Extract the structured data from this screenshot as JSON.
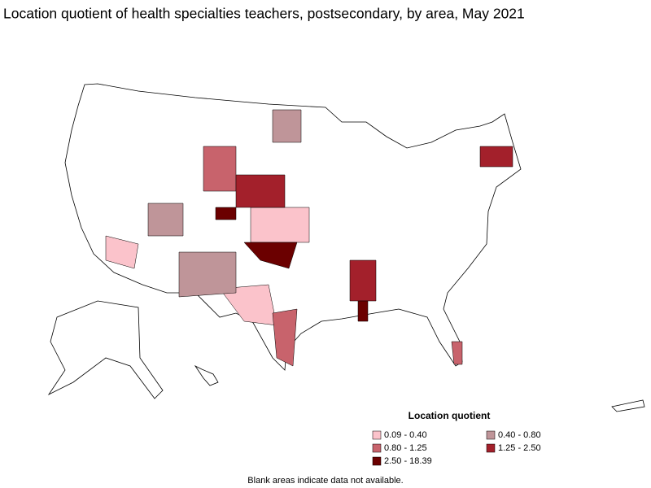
{
  "title": "Location quotient of health specialties teachers, postsecondary, by area, May 2021",
  "legend": {
    "title": "Location quotient",
    "items": [
      {
        "label": "0.09 - 0.40",
        "color": "#fbc3cb"
      },
      {
        "label": "0.40 - 0.80",
        "color": "#bf9599"
      },
      {
        "label": "0.80 - 1.25",
        "color": "#c8636c"
      },
      {
        "label": "1.25 - 2.50",
        "color": "#a3202b"
      },
      {
        "label": "2.50 - 18.39",
        "color": "#6b0000"
      }
    ]
  },
  "footnote": "Blank areas indicate data not available."
}
